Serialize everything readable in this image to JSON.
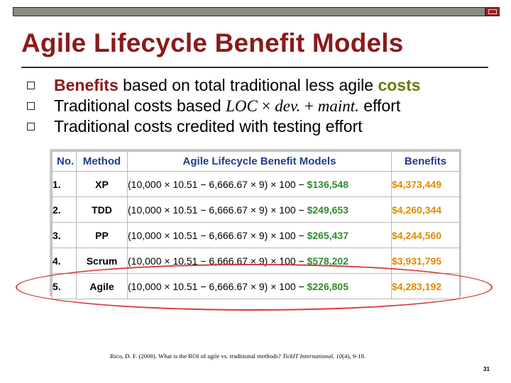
{
  "slide": {
    "title": "Agile Lifecycle Benefit Models",
    "page_number": "31"
  },
  "bullets": [
    {
      "lead": "Benefits",
      "middle": " based on total traditional less agile ",
      "tail": "costs"
    },
    {
      "lead": "Traditional costs based ",
      "math_loc": "LOC",
      "times": " × ",
      "math_dev": "dev.",
      "plus": " + ",
      "math_maint": "maint.",
      "tail": " effort"
    },
    {
      "text": "Traditional costs credited with testing effort"
    }
  ],
  "table": {
    "headers": [
      "No.",
      "Method",
      "Agile Lifecycle Benefit Models",
      "Benefits"
    ],
    "rows": [
      {
        "no": "1.",
        "method": "XP",
        "formula": "(10,000 × 10.51 − 6,666.67 × 9) × 100 − ",
        "agile_cost": "$136,548",
        "benefit": "$4,373,449"
      },
      {
        "no": "2.",
        "method": "TDD",
        "formula": "(10,000 × 10.51 − 6,666.67 × 9) × 100 − ",
        "agile_cost": "$249,653",
        "benefit": "$4,260,344"
      },
      {
        "no": "3.",
        "method": "PP",
        "formula": "(10,000 × 10.51 − 6,666.67 × 9) × 100 − ",
        "agile_cost": "$265,437",
        "benefit": "$4,244,560"
      },
      {
        "no": "4.",
        "method": "Scrum",
        "formula": "(10,000 × 10.51 − 6,666.67 × 9) × 100 − ",
        "agile_cost": "$578,202",
        "benefit": "$3,931,795"
      },
      {
        "no": "5.",
        "method": "Agile",
        "formula": "(10,000 × 10.51 − 6,666.67 × 9) × 100 − ",
        "agile_cost": "$226,805",
        "benefit": "$4,283,192"
      }
    ]
  },
  "citation": {
    "pre": "Rico, D. F. (2008). What is the ROI of agile vs. traditional methods? ",
    "journal": "TickIT International",
    "mid": ", ",
    "volume": "10",
    "post": "(4), 9-18."
  },
  "colors": {
    "title": "#8b1a1a",
    "header_text": "#1f3c8c",
    "agile_cost": "#2e8b2e",
    "benefit": "#e08a00",
    "highlight_ellipse": "#d63b3b"
  }
}
